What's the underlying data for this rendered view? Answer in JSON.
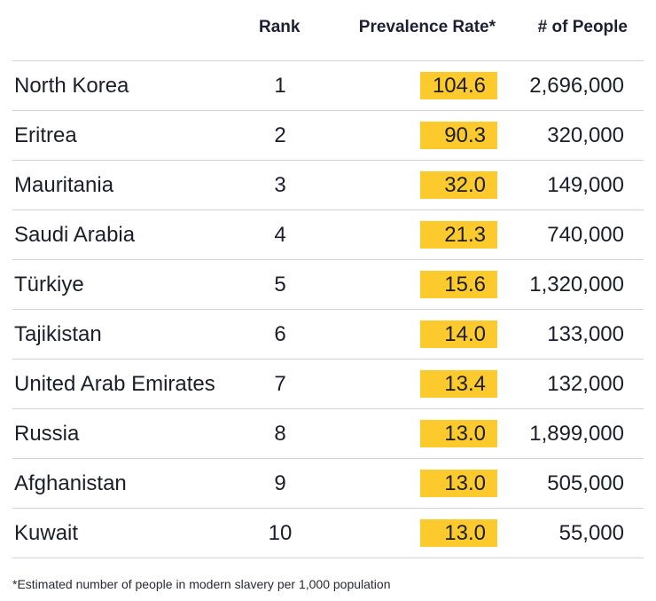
{
  "chart_data": {
    "type": "table",
    "columns": [
      "",
      "Rank",
      "Prevalence Rate*",
      "# of People"
    ],
    "rows": [
      {
        "country": "North Korea",
        "rank": "1",
        "rate": "104.6",
        "people": "2,696,000"
      },
      {
        "country": "Eritrea",
        "rank": "2",
        "rate": "90.3",
        "people": "320,000"
      },
      {
        "country": "Mauritania",
        "rank": "3",
        "rate": "32.0",
        "people": "149,000"
      },
      {
        "country": "Saudi Arabia",
        "rank": "4",
        "rate": "21.3",
        "people": "740,000"
      },
      {
        "country": "Türkiye",
        "rank": "5",
        "rate": "15.6",
        "people": "1,320,000"
      },
      {
        "country": "Tajikistan",
        "rank": "6",
        "rate": "14.0",
        "people": "133,000"
      },
      {
        "country": "United Arab Emirates",
        "rank": "7",
        "rate": "13.4",
        "people": "132,000"
      },
      {
        "country": "Russia",
        "rank": "8",
        "rate": "13.0",
        "people": "1,899,000"
      },
      {
        "country": "Afghanistan",
        "rank": "9",
        "rate": "13.0",
        "people": "505,000"
      },
      {
        "country": "Kuwait",
        "rank": "10",
        "rate": "13.0",
        "people": "55,000"
      }
    ],
    "footnote": "*Estimated number of people in modern slavery per 1,000 population",
    "colors": {
      "highlight": "#fdca2e",
      "divider": "#d4d4d4",
      "text": "#1d1d2b"
    }
  }
}
